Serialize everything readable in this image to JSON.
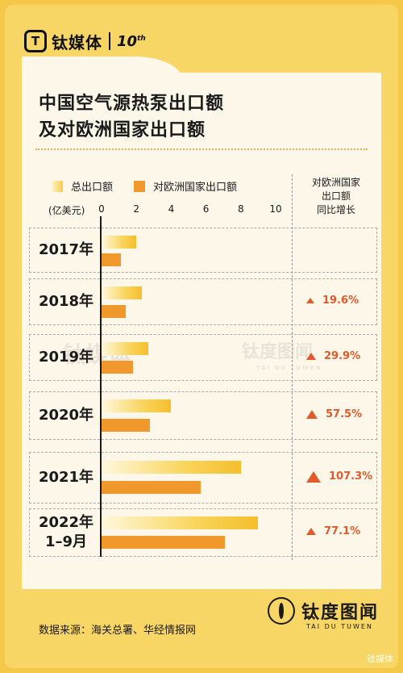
{
  "header": {
    "logo_glyph": "T",
    "logo_text": "钛媒体",
    "anniversary_main": "10",
    "anniversary_sup": "th"
  },
  "title_line1": "中国空气源热泵出口额",
  "title_line2": "及对欧洲国家出口额",
  "legend": {
    "total": "总出口额",
    "eu": "对欧洲国家出口额"
  },
  "unit": "(亿美元)",
  "growth_header": [
    "对欧洲国家",
    "出口额",
    "同比增长"
  ],
  "watermark": {
    "left": "钛媒体",
    "right": "钛度图闻",
    "right_sub": "TAI DU TUWEN"
  },
  "chart_data": {
    "type": "bar",
    "orientation": "horizontal",
    "xlim": [
      0,
      10
    ],
    "xticks": [
      "0",
      "2",
      "4",
      "6",
      "8",
      "10"
    ],
    "categories": [
      [
        "2017年"
      ],
      [
        "2018年"
      ],
      [
        "2019年"
      ],
      [
        "2020年"
      ],
      [
        "2021年"
      ],
      [
        "2022年",
        "1–9月"
      ]
    ],
    "series": [
      {
        "name": "总出口额",
        "color": "#f8c94a",
        "values": [
          2.0,
          2.3,
          2.7,
          4.0,
          8.0,
          9.0
        ]
      },
      {
        "name": "对欧洲国家出口额",
        "color": "#f0982c",
        "values": [
          1.1,
          1.4,
          1.8,
          2.8,
          5.7,
          7.1
        ]
      }
    ],
    "growth_labels": [
      "",
      "19.6%",
      "29.9%",
      "57.5%",
      "107.3%",
      "77.1%"
    ]
  },
  "footer": {
    "source": "数据来源：海关总署、华经情报网",
    "brand": "钛度图闻",
    "brand_sub": "TAI DU TUWEN",
    "corner": "钛媒体"
  }
}
